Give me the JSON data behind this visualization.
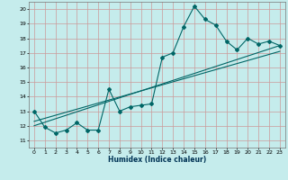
{
  "xlabel": "Humidex (Indice chaleur)",
  "bg_color": "#c5ecec",
  "grid_color": "#cc9999",
  "line_color": "#006666",
  "xlim": [
    -0.5,
    23.5
  ],
  "ylim": [
    10.5,
    20.5
  ],
  "xticks": [
    0,
    1,
    2,
    3,
    4,
    5,
    6,
    7,
    8,
    9,
    10,
    11,
    12,
    13,
    14,
    15,
    16,
    17,
    18,
    19,
    20,
    21,
    22,
    23
  ],
  "yticks": [
    11,
    12,
    13,
    14,
    15,
    16,
    17,
    18,
    19,
    20
  ],
  "main_x": [
    0,
    1,
    2,
    3,
    4,
    5,
    6,
    7,
    8,
    9,
    10,
    11,
    12,
    13,
    14,
    15,
    16,
    17,
    18,
    19,
    20,
    21,
    22,
    23
  ],
  "main_y": [
    13.0,
    11.9,
    11.5,
    11.7,
    12.2,
    11.7,
    11.7,
    14.5,
    13.0,
    13.3,
    13.4,
    13.5,
    16.7,
    17.0,
    18.8,
    20.2,
    19.3,
    18.9,
    17.8,
    17.2,
    18.0,
    17.6,
    17.8,
    17.5
  ],
  "trend1_x": [
    0,
    23
  ],
  "trend1_y": [
    12.0,
    17.5
  ],
  "trend2_x": [
    0,
    23
  ],
  "trend2_y": [
    12.3,
    17.1
  ]
}
